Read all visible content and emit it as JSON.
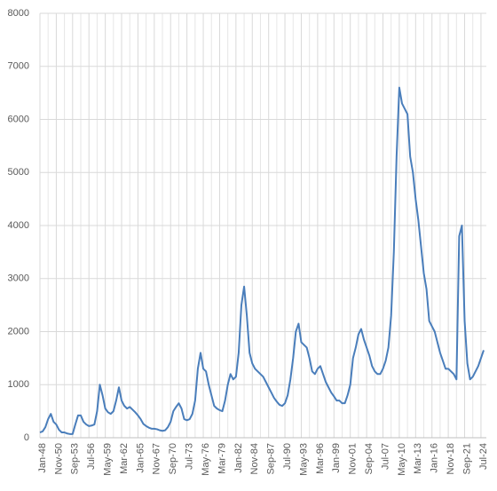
{
  "chart_data": {
    "type": "line",
    "categories": [
      "Jan-48",
      null,
      null,
      null,
      null,
      null,
      "Nov-50",
      null,
      null,
      null,
      null,
      null,
      "Sep-53",
      null,
      null,
      null,
      null,
      null,
      "Jul-56",
      null,
      null,
      null,
      null,
      null,
      "May-59",
      null,
      null,
      null,
      null,
      null,
      "Mar-62",
      null,
      null,
      null,
      null,
      null,
      "Jan-65",
      null,
      null,
      null,
      null,
      null,
      "Nov-67",
      null,
      null,
      null,
      null,
      null,
      "Sep-70",
      null,
      null,
      null,
      null,
      null,
      "Jul-73",
      null,
      null,
      null,
      null,
      null,
      "May-76",
      null,
      null,
      null,
      null,
      null,
      "Mar-79",
      null,
      null,
      null,
      null,
      null,
      "Jan-82",
      null,
      null,
      null,
      null,
      null,
      "Nov-84",
      null,
      null,
      null,
      null,
      null,
      "Sep-87",
      null,
      null,
      null,
      null,
      null,
      "Jul-90",
      null,
      null,
      null,
      null,
      null,
      "May-93",
      null,
      null,
      null,
      null,
      null,
      "Mar-96",
      null,
      null,
      null,
      null,
      null,
      "Jan-99",
      null,
      null,
      null,
      null,
      null,
      "Nov-01",
      null,
      null,
      null,
      null,
      null,
      "Sep-04",
      null,
      null,
      null,
      null,
      null,
      "Jul-07",
      null,
      null,
      null,
      null,
      null,
      "May-10",
      null,
      null,
      null,
      null,
      null,
      "Mar-13",
      null,
      null,
      null,
      null,
      null,
      "Jan-16",
      null,
      null,
      null,
      null,
      null,
      "Nov-18",
      null,
      null,
      null,
      null,
      null,
      "Sep-21",
      null,
      null,
      null,
      null,
      null,
      "Jul-24",
      null
    ],
    "series": [
      {
        "color": "#4a7ebb",
        "values": [
          100,
          120,
          200,
          350,
          450,
          300,
          250,
          150,
          100,
          100,
          80,
          70,
          70,
          250,
          420,
          420,
          300,
          250,
          220,
          230,
          250,
          500,
          1000,
          800,
          550,
          480,
          450,
          500,
          700,
          950,
          700,
          600,
          550,
          580,
          530,
          480,
          420,
          350,
          260,
          220,
          190,
          170,
          170,
          160,
          140,
          130,
          140,
          200,
          300,
          500,
          580,
          650,
          550,
          350,
          330,
          350,
          450,
          700,
          1300,
          1600,
          1300,
          1250,
          1000,
          800,
          600,
          550,
          520,
          500,
          700,
          1000,
          1200,
          1100,
          1150,
          1600,
          2500,
          2850,
          2300,
          1600,
          1400,
          1300,
          1250,
          1200,
          1150,
          1050,
          950,
          850,
          750,
          680,
          620,
          600,
          650,
          800,
          1100,
          1500,
          2000,
          2150,
          1800,
          1750,
          1700,
          1500,
          1250,
          1200,
          1300,
          1350,
          1200,
          1050,
          950,
          850,
          780,
          700,
          700,
          650,
          650,
          800,
          1000,
          1500,
          1700,
          1950,
          2050,
          1850,
          1700,
          1550,
          1350,
          1250,
          1200,
          1200,
          1300,
          1450,
          1700,
          2300,
          3500,
          5300,
          6600,
          6300,
          6200,
          6100,
          5300,
          5000,
          4500,
          4100,
          3600,
          3100,
          2800,
          2200,
          2100,
          2000,
          1800,
          1600,
          1450,
          1300,
          1300,
          1250,
          1200,
          1100,
          3800,
          4000,
          2200,
          1400,
          1100,
          1150,
          1250,
          1350,
          1500,
          1650
        ]
      }
    ],
    "ylim": [
      0,
      8000
    ],
    "yticks": [
      0,
      1000,
      2000,
      3000,
      4000,
      5000,
      6000,
      7000,
      8000
    ],
    "grid": true
  }
}
